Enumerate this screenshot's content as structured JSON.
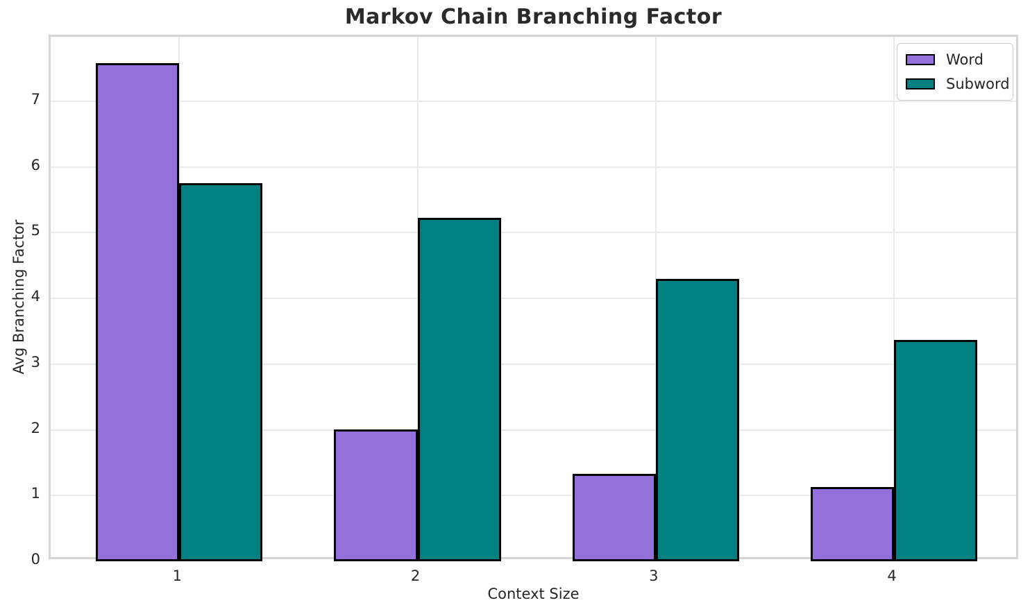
{
  "chart_data": {
    "type": "bar",
    "title": "Markov Chain Branching Factor",
    "xlabel": "Context Size",
    "ylabel": "Avg Branching Factor",
    "categories": [
      "1",
      "2",
      "3",
      "4"
    ],
    "series": [
      {
        "name": "Word",
        "color": "#9370db",
        "offset": -0.175,
        "values": [
          7.58,
          2.01,
          1.33,
          1.13
        ]
      },
      {
        "name": "Subword",
        "color": "#008080",
        "offset": 0.175,
        "values": [
          5.75,
          5.23,
          4.3,
          3.37
        ]
      }
    ],
    "bar_width": 0.35,
    "yticks": [
      0,
      1,
      2,
      3,
      4,
      5,
      6,
      7
    ],
    "ylim": [
      0,
      7.98
    ],
    "xlim": [
      -0.54,
      3.53
    ],
    "grid": true,
    "legend_position": "upper right",
    "bar_edge_color": "#000000",
    "grid_color": "#e9e9e9",
    "spine_color": "#d5d5d5",
    "text_color": "#262626",
    "title_color": "#2b2b2b"
  }
}
